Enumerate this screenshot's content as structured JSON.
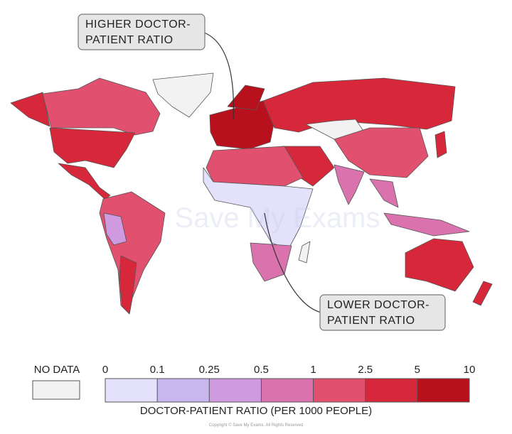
{
  "annotations": [
    {
      "lines": [
        "HIGHER DOCTOR-",
        "PATIENT RATIO"
      ]
    },
    {
      "lines": [
        "LOWER DOCTOR-",
        "PATIENT RATIO"
      ]
    }
  ],
  "watermark": "Save My Exams",
  "legend": {
    "no_data_label": "NO DATA",
    "no_data_color": "#f2f2f2",
    "ticks": [
      0,
      0.1,
      0.25,
      0.5,
      1,
      2.5,
      5,
      10
    ],
    "colors": [
      "#e3e1fb",
      "#c8b7ef",
      "#cf9ae0",
      "#d972ad",
      "#e2506f",
      "#d6283a",
      "#b8111d"
    ],
    "title": "DOCTOR-PATIENT RATIO (PER 1000 PEOPLE)"
  },
  "copyright": "Copyright © Save My Exams. All Rights Reserved"
}
